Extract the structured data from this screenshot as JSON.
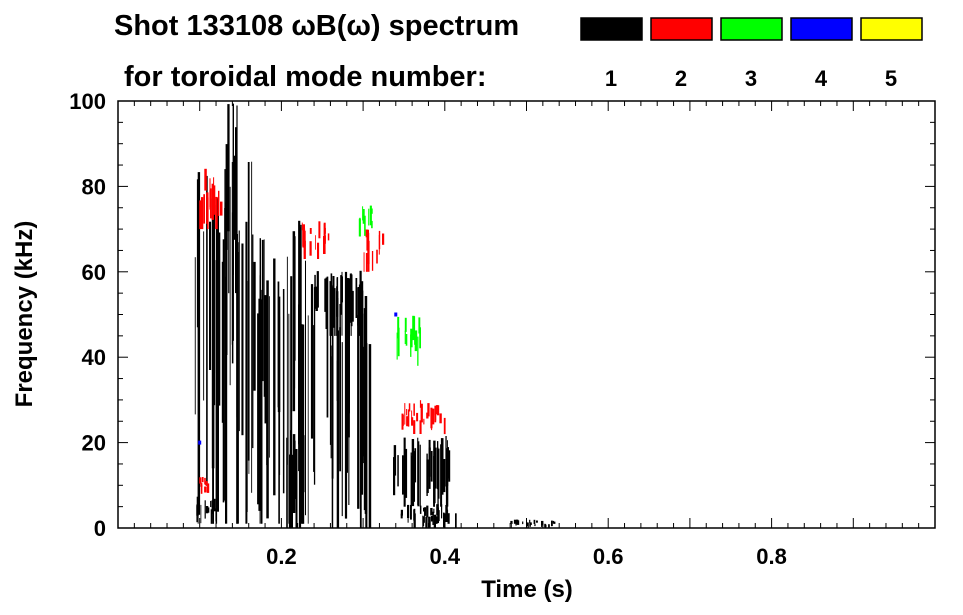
{
  "title_line1": "Shot 133108 ωB(ω) spectrum",
  "title_line2": "for toroidal mode number:",
  "legend": [
    {
      "label": "1",
      "color": "#000000"
    },
    {
      "label": "2",
      "color": "#ff0000"
    },
    {
      "label": "3",
      "color": "#00ff00"
    },
    {
      "label": "4",
      "color": "#0000ff"
    },
    {
      "label": "5",
      "color": "#ffff00"
    }
  ],
  "chart_data": {
    "type": "heatmap",
    "xlabel": "Time (s)",
    "ylabel": "Frequency (kHz)",
    "xlim": [
      0.0,
      1.0
    ],
    "ylim": [
      0,
      100
    ],
    "x_ticks": [
      "0.2",
      "0.4",
      "0.6",
      "0.8"
    ],
    "x_tick_values": [
      0.2,
      0.4,
      0.6,
      0.8
    ],
    "y_ticks": [
      "0",
      "20",
      "40",
      "60",
      "80",
      "100"
    ],
    "y_tick_values": [
      0,
      20,
      40,
      60,
      80,
      100
    ],
    "grid": false,
    "features": [
      {
        "mode": 1,
        "color": "#000000",
        "t": [
          0.09,
          0.165
        ],
        "f": [
          1,
          86
        ]
      },
      {
        "mode": 1,
        "color": "#000000",
        "t": [
          0.13,
          0.145
        ],
        "f": [
          55,
          100
        ]
      },
      {
        "mode": 1,
        "color": "#000000",
        "t": [
          0.095,
          0.12
        ],
        "f": [
          1,
          8
        ]
      },
      {
        "mode": 1,
        "color": "#000000",
        "t": [
          0.165,
          0.24
        ],
        "f": [
          1,
          72
        ]
      },
      {
        "mode": 1,
        "color": "#000000",
        "t": [
          0.205,
          0.23
        ],
        "f": [
          0,
          25
        ]
      },
      {
        "mode": 1,
        "color": "#000000",
        "t": [
          0.24,
          0.3
        ],
        "f": [
          45,
          61
        ]
      },
      {
        "mode": 1,
        "color": "#000000",
        "t": [
          0.255,
          0.31
        ],
        "f": [
          0,
          60
        ]
      },
      {
        "mode": 1,
        "color": "#000000",
        "t": [
          0.335,
          0.41
        ],
        "f": [
          5,
          22
        ]
      },
      {
        "mode": 1,
        "color": "#000000",
        "t": [
          0.345,
          0.415
        ],
        "f": [
          0,
          6
        ]
      },
      {
        "mode": 1,
        "color": "#000000",
        "t": [
          0.48,
          0.535
        ],
        "f": [
          0,
          2
        ]
      },
      {
        "mode": 2,
        "color": "#ff0000",
        "t": [
          0.095,
          0.125
        ],
        "f": [
          70,
          85
        ]
      },
      {
        "mode": 2,
        "color": "#ff0000",
        "t": [
          0.225,
          0.26
        ],
        "f": [
          63,
          72
        ]
      },
      {
        "mode": 2,
        "color": "#ff0000",
        "t": [
          0.3,
          0.325
        ],
        "f": [
          60,
          70
        ]
      },
      {
        "mode": 2,
        "color": "#ff0000",
        "t": [
          0.345,
          0.4
        ],
        "f": [
          22,
          30
        ]
      },
      {
        "mode": 2,
        "color": "#ff0000",
        "t": [
          0.095,
          0.11
        ],
        "f": [
          8,
          12
        ]
      },
      {
        "mode": 3,
        "color": "#00ff00",
        "t": [
          0.29,
          0.31
        ],
        "f": [
          68,
          76
        ]
      },
      {
        "mode": 3,
        "color": "#00ff00",
        "t": [
          0.34,
          0.37
        ],
        "f": [
          38,
          50
        ]
      },
      {
        "mode": 4,
        "color": "#0000ff",
        "t": [
          0.1,
          0.1
        ],
        "f": [
          20,
          20
        ]
      },
      {
        "mode": 4,
        "color": "#0000ff",
        "t": [
          0.34,
          0.34
        ],
        "f": [
          50,
          50
        ]
      }
    ]
  }
}
